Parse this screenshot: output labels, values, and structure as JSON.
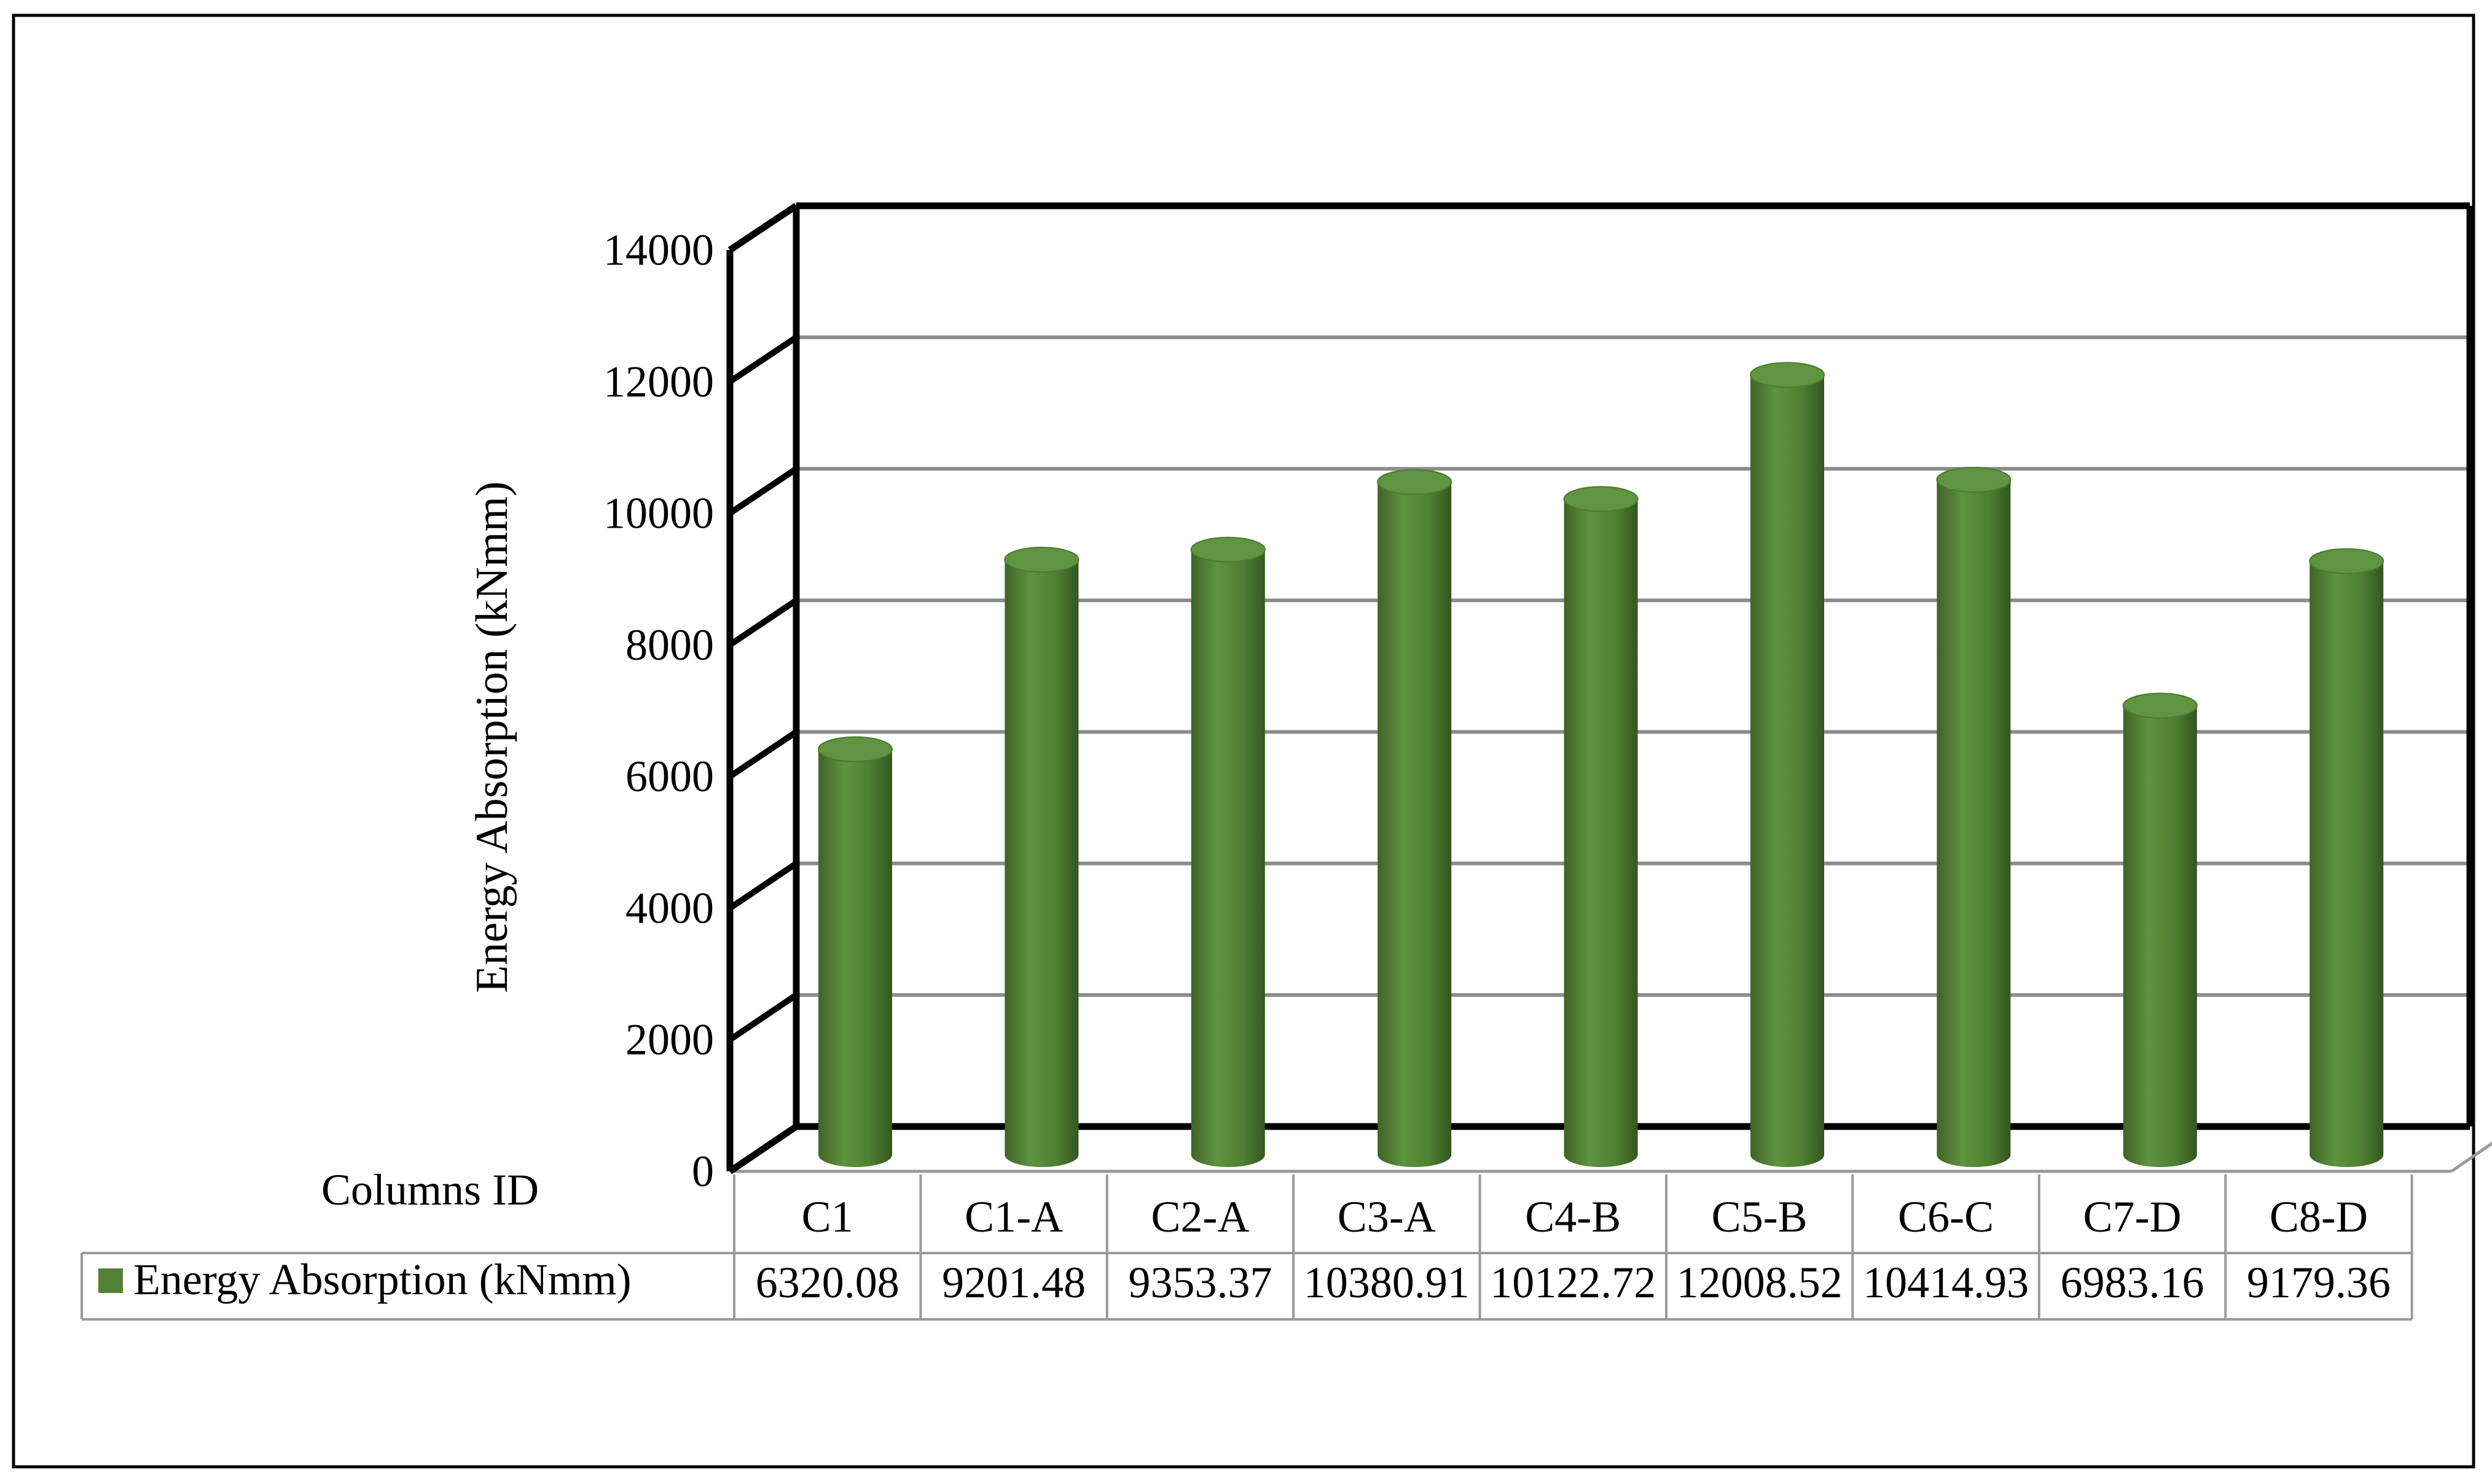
{
  "chart_data": {
    "type": "bar",
    "style": "3d-cylinder",
    "categories": [
      "C1",
      "C1-A",
      "C2-A",
      "C3-A",
      "C4-B",
      "C5-B",
      "C6-C",
      "C7-D",
      "C8-D"
    ],
    "series": [
      {
        "name": "Energy Absorption (kNmm)",
        "color": "#548235",
        "values": [
          6320.08,
          9201.48,
          9353.37,
          10380.91,
          10122.72,
          12008.52,
          10414.93,
          6983.16,
          9179.36
        ]
      }
    ],
    "value_labels": [
      "6320.08",
      "9201.48",
      "9353.37",
      "10380.91",
      "10122.72",
      "12008.52",
      "10414.93",
      "6983.16",
      "9179.36"
    ],
    "ylabel": "Energy Absorption (kNmm)",
    "table_corner_label": "Columns ID",
    "ylim": [
      0,
      14000
    ],
    "yticks": [
      0,
      2000,
      4000,
      6000,
      8000,
      10000,
      12000,
      14000
    ],
    "grid": true,
    "legend": "data-table-below"
  }
}
